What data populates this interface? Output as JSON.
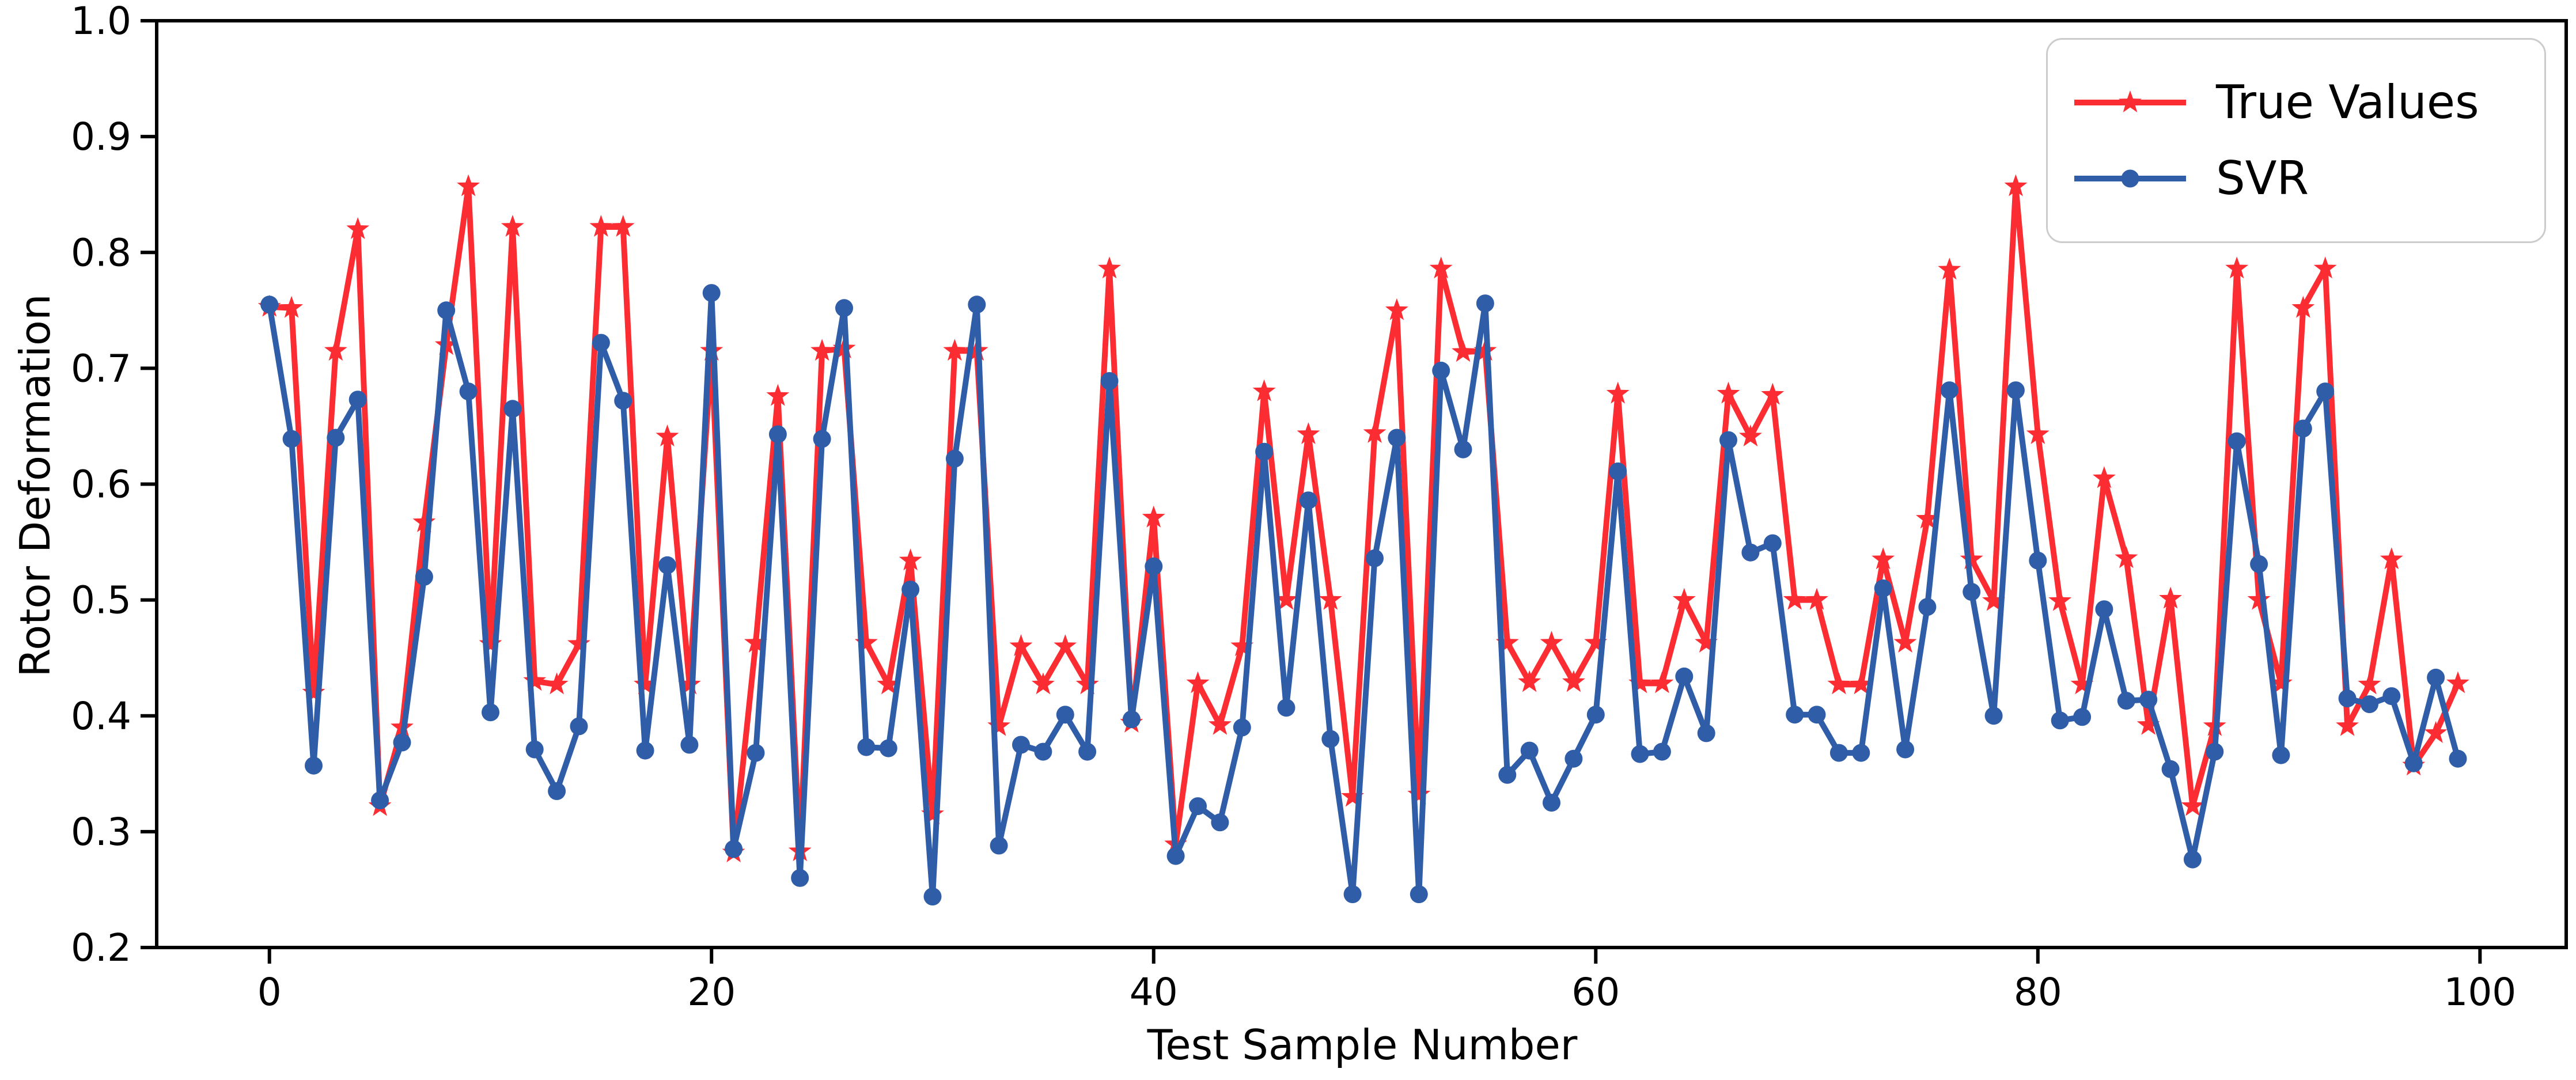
{
  "chart_data": {
    "type": "line",
    "title": "",
    "xlabel": "Test Sample Number",
    "ylabel": "Rotor Deformation",
    "xlim": [
      -5.1,
      103.9
    ],
    "ylim": [
      0.2,
      1.0
    ],
    "xticks": [
      0,
      20,
      40,
      60,
      80,
      100
    ],
    "yticks": [
      0.2,
      0.3,
      0.4,
      0.5,
      0.6,
      0.7,
      0.8,
      0.9,
      1.0
    ],
    "grid": false,
    "legend": {
      "position": "upper right",
      "entries": [
        "True Values",
        "SVR"
      ]
    },
    "x": [
      0,
      1,
      2,
      3,
      4,
      5,
      6,
      7,
      8,
      9,
      10,
      11,
      12,
      13,
      14,
      15,
      16,
      17,
      18,
      19,
      20,
      21,
      22,
      23,
      24,
      25,
      26,
      27,
      28,
      29,
      30,
      31,
      32,
      33,
      34,
      35,
      36,
      37,
      38,
      39,
      40,
      41,
      42,
      43,
      44,
      45,
      46,
      47,
      48,
      49,
      50,
      51,
      52,
      53,
      54,
      55,
      56,
      57,
      58,
      59,
      60,
      61,
      62,
      63,
      64,
      65,
      66,
      67,
      68,
      69,
      70,
      71,
      72,
      73,
      74,
      75,
      76,
      77,
      78,
      79,
      80,
      81,
      82,
      83,
      84,
      85,
      86,
      87,
      88,
      89,
      90,
      91,
      92,
      93,
      94,
      95,
      96,
      97,
      98,
      99
    ],
    "series": [
      {
        "name": "True Values",
        "color": "#fb2d33",
        "marker": "star",
        "values": [
          0.753,
          0.752,
          0.42,
          0.715,
          0.82,
          0.322,
          0.39,
          0.567,
          0.72,
          0.857,
          0.462,
          0.822,
          0.43,
          0.427,
          0.462,
          0.822,
          0.822,
          0.427,
          0.641,
          0.427,
          0.715,
          0.282,
          0.463,
          0.676,
          0.283,
          0.715,
          0.717,
          0.463,
          0.427,
          0.534,
          0.315,
          0.715,
          0.715,
          0.391,
          0.46,
          0.427,
          0.46,
          0.427,
          0.786,
          0.394,
          0.571,
          0.289,
          0.428,
          0.392,
          0.46,
          0.68,
          0.5,
          0.643,
          0.5,
          0.33,
          0.644,
          0.75,
          0.332,
          0.786,
          0.714,
          0.715,
          0.463,
          0.429,
          0.463,
          0.429,
          0.463,
          0.678,
          0.428,
          0.428,
          0.5,
          0.463,
          0.678,
          0.641,
          0.677,
          0.5,
          0.5,
          0.427,
          0.427,
          0.535,
          0.463,
          0.57,
          0.785,
          0.535,
          0.499,
          0.857,
          0.643,
          0.499,
          0.427,
          0.605,
          0.536,
          0.392,
          0.501,
          0.322,
          0.391,
          0.786,
          0.5,
          0.428,
          0.752,
          0.786,
          0.391,
          0.427,
          0.535,
          0.357,
          0.385,
          0.428
        ]
      },
      {
        "name": "SVR",
        "color": "#2f5da8",
        "marker": "circle",
        "values": [
          0.755,
          0.639,
          0.357,
          0.64,
          0.673,
          0.327,
          0.377,
          0.52,
          0.75,
          0.68,
          0.403,
          0.665,
          0.371,
          0.335,
          0.391,
          0.722,
          0.672,
          0.37,
          0.53,
          0.375,
          0.765,
          0.285,
          0.368,
          0.643,
          0.26,
          0.639,
          0.752,
          0.373,
          0.372,
          0.509,
          0.244,
          0.622,
          0.755,
          0.288,
          0.375,
          0.369,
          0.401,
          0.369,
          0.689,
          0.397,
          0.529,
          0.279,
          0.322,
          0.308,
          0.39,
          0.628,
          0.407,
          0.586,
          0.38,
          0.246,
          0.536,
          0.64,
          0.246,
          0.698,
          0.63,
          0.756,
          0.349,
          0.37,
          0.325,
          0.363,
          0.401,
          0.611,
          0.367,
          0.369,
          0.434,
          0.385,
          0.638,
          0.541,
          0.549,
          0.401,
          0.401,
          0.368,
          0.368,
          0.51,
          0.371,
          0.494,
          0.681,
          0.507,
          0.4,
          0.681,
          0.534,
          0.396,
          0.399,
          0.492,
          0.413,
          0.414,
          0.354,
          0.276,
          0.369,
          0.637,
          0.531,
          0.366,
          0.648,
          0.68,
          0.415,
          0.41,
          0.417,
          0.359,
          0.433,
          0.363
        ]
      }
    ],
    "axis_color": "#000000",
    "background_color": "#ffffff"
  }
}
